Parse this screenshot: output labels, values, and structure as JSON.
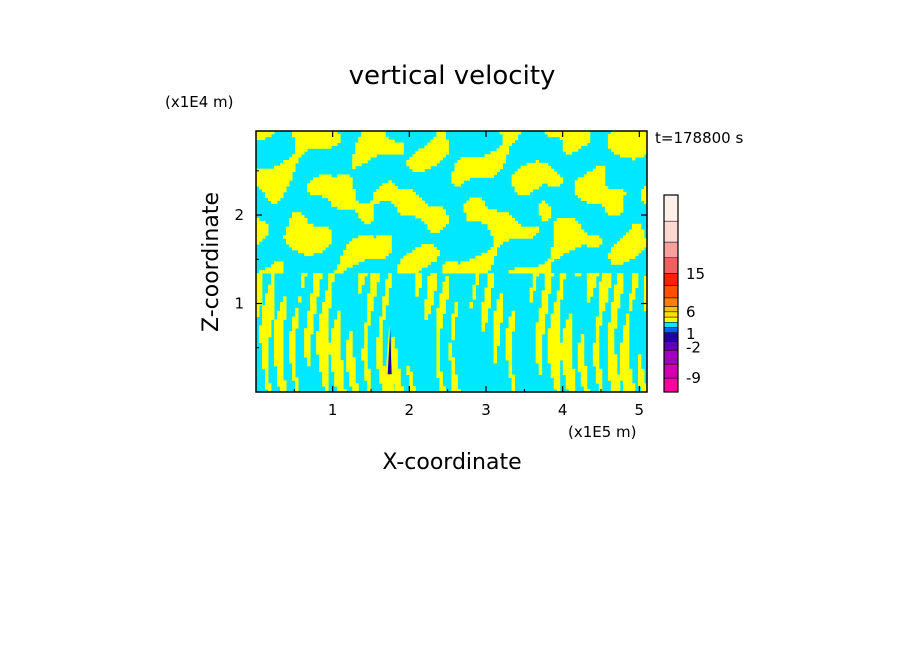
{
  "chart_data": {
    "type": "heatmap",
    "title": "vertical velocity",
    "xlabel": "X-coordinate",
    "ylabel": "Z-coordinate",
    "x_scale_label": "(x1E5 m)",
    "y_scale_label": "(x1E4 m)",
    "time_label": "t=178800 s",
    "xlim": [
      0,
      5.1
    ],
    "ylim": [
      0,
      2.95
    ],
    "x_ticks": [
      1,
      2,
      3,
      4,
      5
    ],
    "y_ticks": [
      1,
      2
    ],
    "x_tick_labels": [
      "1",
      "2",
      "3",
      "4",
      "5"
    ],
    "y_tick_labels": [
      "1",
      "2"
    ],
    "colorbar": {
      "levels": [
        {
          "color": "#ff00a0"
        },
        {
          "color": "#d000b0"
        },
        {
          "color": "#a000c0"
        },
        {
          "color": "#6000b0"
        },
        {
          "color": "#2000a0"
        },
        {
          "color": "#0060ff"
        },
        {
          "color": "#00e8ff"
        },
        {
          "color": "#ffff00"
        },
        {
          "color": "#ffe000"
        },
        {
          "color": "#ffc000"
        },
        {
          "color": "#ff8000"
        },
        {
          "color": "#ff5000"
        },
        {
          "color": "#ff2000"
        },
        {
          "color": "#f06060"
        },
        {
          "color": "#f8a0a0"
        },
        {
          "color": "#fcd8d0"
        },
        {
          "color": "#fff0ec"
        }
      ],
      "labels": [
        {
          "text": "-9",
          "pos": 0.07
        },
        {
          "text": "-2",
          "pos": 0.225
        },
        {
          "text": "1",
          "pos": 0.295
        },
        {
          "text": "6",
          "pos": 0.405
        },
        {
          "text": "15",
          "pos": 0.6
        }
      ]
    },
    "field_colors": {
      "positive": "#ffff00",
      "negative": "#00e8ff",
      "strong_negative": "#2000a0",
      "strong_positive": "#ff8000"
    }
  }
}
